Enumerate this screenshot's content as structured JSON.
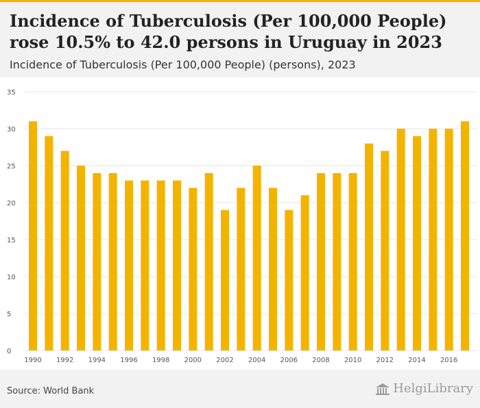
{
  "header": {
    "title": "Incidence of Tuberculosis (Per 100,000 People) rose 10.5% to 42.0 persons in Uruguay in 2023",
    "subtitle": "Incidence of Tuberculosis (Per 100,000 People) (persons), 2023"
  },
  "footer": {
    "source": "Source: World Bank",
    "brand": "HelgiLibrary",
    "brand_icon": "library-building-icon"
  },
  "colors": {
    "bar": "#f5b301",
    "grid": "#e6e6e6",
    "axis_text": "#555555"
  },
  "chart_data": {
    "type": "bar",
    "title": "",
    "xlabel": "",
    "ylabel": "",
    "ylim": [
      0,
      35
    ],
    "yticks": [
      0,
      5,
      10,
      15,
      20,
      25,
      30,
      35
    ],
    "grid": true,
    "legend": "none",
    "categories": [
      "1990",
      "1991",
      "1992",
      "1993",
      "1994",
      "1995",
      "1996",
      "1997",
      "1998",
      "1999",
      "2000",
      "2001",
      "2002",
      "2003",
      "2004",
      "2005",
      "2006",
      "2007",
      "2008",
      "2009",
      "2010",
      "2011",
      "2012",
      "2013",
      "2014",
      "2015",
      "2016",
      "2017"
    ],
    "xtick_labels": [
      "1990",
      "1992",
      "1994",
      "1996",
      "1998",
      "2000",
      "2002",
      "2004",
      "2006",
      "2008",
      "2010",
      "2012",
      "2014",
      "2016"
    ],
    "values": [
      31,
      29,
      27,
      25,
      24,
      24,
      23,
      23,
      23,
      23,
      22,
      24,
      19,
      22,
      25,
      22,
      19,
      21,
      24,
      24,
      24,
      28,
      27,
      30,
      29,
      30,
      30,
      31
    ]
  }
}
